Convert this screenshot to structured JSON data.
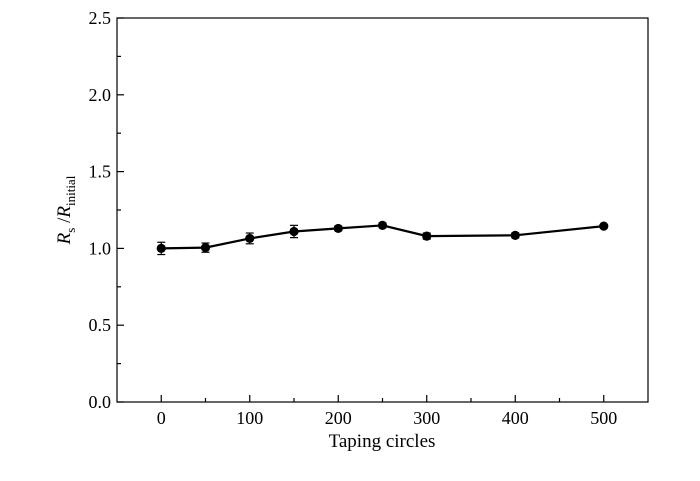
{
  "chart_data": {
    "type": "line",
    "xlabel": "Taping circles",
    "ylabel": {
      "r1": "R",
      "sub1": "s",
      "slash": " /",
      "r2": "R",
      "sub2": "initial"
    },
    "xlim": [
      -50,
      550
    ],
    "ylim": [
      0.0,
      2.5
    ],
    "xticks": [
      "0",
      "100",
      "200",
      "300",
      "400",
      "500"
    ],
    "yticks": [
      "0.0",
      "0.5",
      "1.0",
      "1.5",
      "2.0",
      "2.5"
    ],
    "grid": false,
    "legend": "none",
    "series": [
      {
        "x": [
          0,
          50,
          100,
          150,
          200,
          250,
          300,
          400,
          500
        ],
        "y": [
          1.0,
          1.005,
          1.065,
          1.11,
          1.13,
          1.15,
          1.08,
          1.085,
          1.145
        ],
        "error": [
          0.04,
          0.03,
          0.035,
          0.04,
          0.015,
          0.015,
          0.02,
          0.015,
          0.01
        ]
      }
    ]
  }
}
